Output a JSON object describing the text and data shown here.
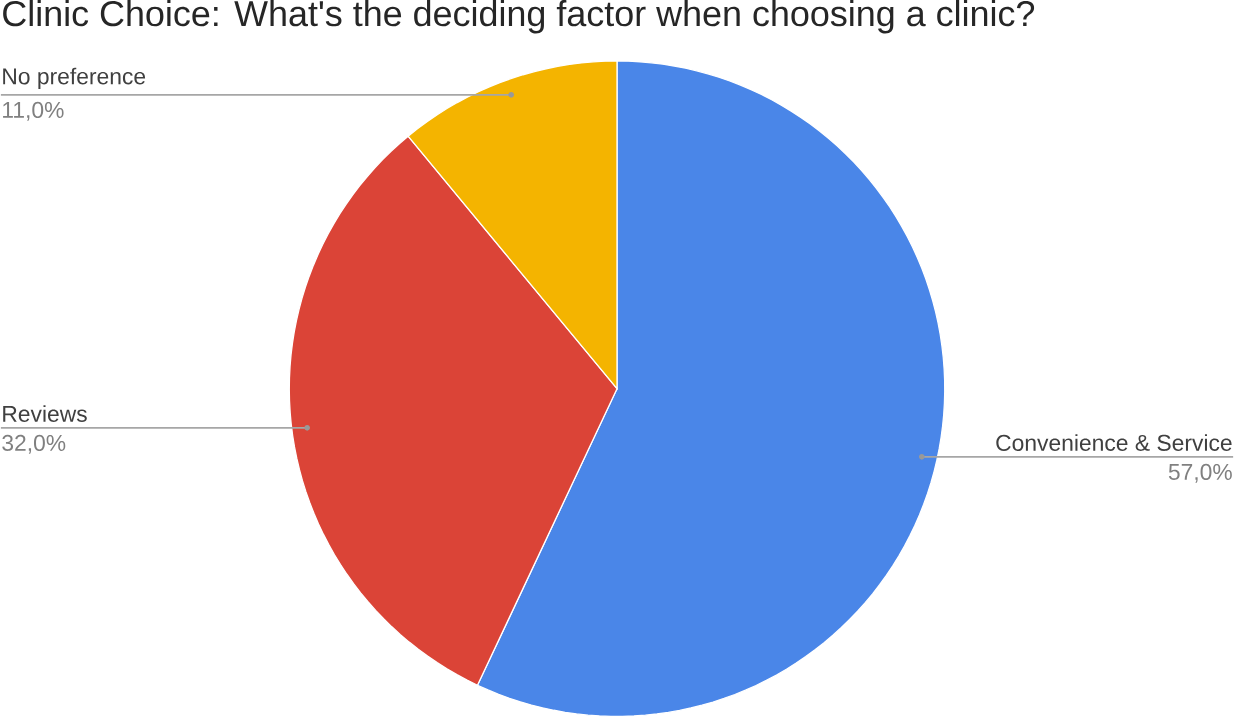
{
  "chart_data": {
    "type": "pie",
    "title": "Clinic Choice: What's the deciding factor when choosing a clinic?",
    "categories": [
      "Convenience & Service",
      "Reviews",
      "No preference"
    ],
    "values": [
      57,
      32,
      11
    ],
    "colors": [
      "#4a86e8",
      "#db4437",
      "#f4b400"
    ],
    "value_labels": [
      "57,0%",
      "32,0%",
      "11,0%"
    ]
  }
}
